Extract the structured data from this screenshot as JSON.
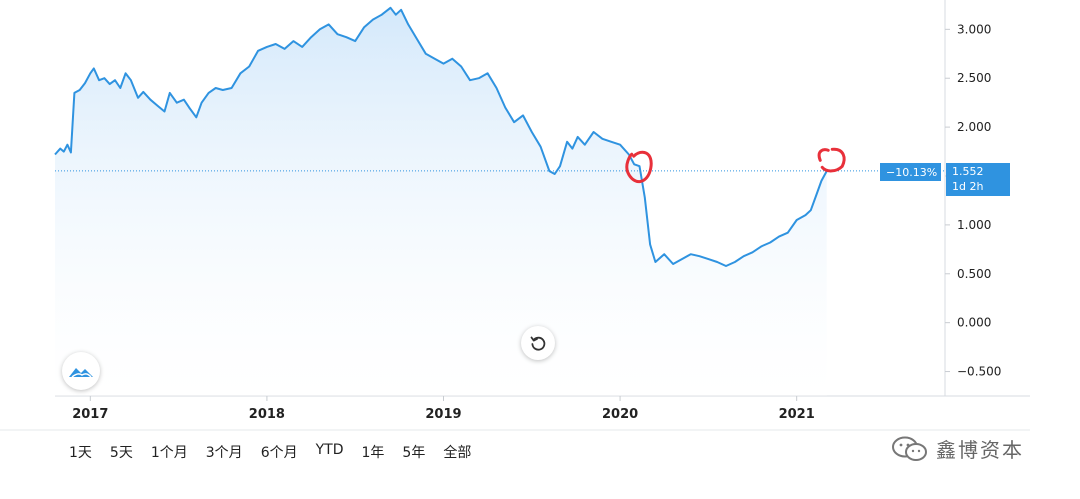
{
  "chart_data": {
    "type": "area",
    "x_years": [
      "2017",
      "2018",
      "2019",
      "2020",
      "2021"
    ],
    "y_ticks": [
      "3.000",
      "2.500",
      "2.000",
      "1.500",
      "1.000",
      "0.500",
      "0.000",
      "−0.500"
    ],
    "ylim": [
      -0.75,
      3.3
    ],
    "last_value": "1.552",
    "change_pct": "−10.13%",
    "interval_label": "1d 2h",
    "colors": {
      "line": "#2f93e0",
      "fill_top": "#cfe6fa",
      "fill_bottom": "#ffffff",
      "annotation": "#e8303a"
    },
    "series": [
      {
        "points": [
          [
            2016.8,
            1.72
          ],
          [
            2016.83,
            1.78
          ],
          [
            2016.85,
            1.75
          ],
          [
            2016.87,
            1.82
          ],
          [
            2016.89,
            1.74
          ],
          [
            2016.91,
            2.35
          ],
          [
            2016.94,
            2.38
          ],
          [
            2016.97,
            2.45
          ],
          [
            2017.0,
            2.55
          ],
          [
            2017.02,
            2.6
          ],
          [
            2017.05,
            2.48
          ],
          [
            2017.08,
            2.5
          ],
          [
            2017.11,
            2.44
          ],
          [
            2017.14,
            2.48
          ],
          [
            2017.17,
            2.4
          ],
          [
            2017.2,
            2.55
          ],
          [
            2017.23,
            2.48
          ],
          [
            2017.27,
            2.3
          ],
          [
            2017.3,
            2.36
          ],
          [
            2017.34,
            2.28
          ],
          [
            2017.38,
            2.22
          ],
          [
            2017.42,
            2.16
          ],
          [
            2017.45,
            2.35
          ],
          [
            2017.49,
            2.25
          ],
          [
            2017.53,
            2.28
          ],
          [
            2017.56,
            2.2
          ],
          [
            2017.6,
            2.1
          ],
          [
            2017.63,
            2.25
          ],
          [
            2017.67,
            2.35
          ],
          [
            2017.71,
            2.4
          ],
          [
            2017.75,
            2.38
          ],
          [
            2017.8,
            2.4
          ],
          [
            2017.85,
            2.55
          ],
          [
            2017.9,
            2.62
          ],
          [
            2017.95,
            2.78
          ],
          [
            2018.0,
            2.82
          ],
          [
            2018.05,
            2.85
          ],
          [
            2018.1,
            2.8
          ],
          [
            2018.15,
            2.88
          ],
          [
            2018.2,
            2.82
          ],
          [
            2018.25,
            2.92
          ],
          [
            2018.3,
            3.0
          ],
          [
            2018.35,
            3.05
          ],
          [
            2018.4,
            2.95
          ],
          [
            2018.45,
            2.92
          ],
          [
            2018.5,
            2.88
          ],
          [
            2018.55,
            3.02
          ],
          [
            2018.6,
            3.1
          ],
          [
            2018.65,
            3.15
          ],
          [
            2018.7,
            3.22
          ],
          [
            2018.73,
            3.15
          ],
          [
            2018.76,
            3.2
          ],
          [
            2018.8,
            3.05
          ],
          [
            2018.85,
            2.9
          ],
          [
            2018.9,
            2.75
          ],
          [
            2018.95,
            2.7
          ],
          [
            2019.0,
            2.65
          ],
          [
            2019.05,
            2.7
          ],
          [
            2019.1,
            2.62
          ],
          [
            2019.15,
            2.48
          ],
          [
            2019.2,
            2.5
          ],
          [
            2019.25,
            2.55
          ],
          [
            2019.3,
            2.4
          ],
          [
            2019.35,
            2.2
          ],
          [
            2019.4,
            2.05
          ],
          [
            2019.45,
            2.12
          ],
          [
            2019.5,
            1.95
          ],
          [
            2019.55,
            1.8
          ],
          [
            2019.6,
            1.55
          ],
          [
            2019.63,
            1.52
          ],
          [
            2019.66,
            1.6
          ],
          [
            2019.7,
            1.85
          ],
          [
            2019.73,
            1.78
          ],
          [
            2019.76,
            1.9
          ],
          [
            2019.8,
            1.82
          ],
          [
            2019.85,
            1.95
          ],
          [
            2019.9,
            1.88
          ],
          [
            2019.95,
            1.85
          ],
          [
            2020.0,
            1.82
          ],
          [
            2020.05,
            1.72
          ],
          [
            2020.08,
            1.62
          ],
          [
            2020.11,
            1.6
          ],
          [
            2020.14,
            1.28
          ],
          [
            2020.17,
            0.8
          ],
          [
            2020.2,
            0.62
          ],
          [
            2020.25,
            0.7
          ],
          [
            2020.3,
            0.6
          ],
          [
            2020.35,
            0.65
          ],
          [
            2020.4,
            0.7
          ],
          [
            2020.45,
            0.68
          ],
          [
            2020.5,
            0.65
          ],
          [
            2020.55,
            0.62
          ],
          [
            2020.6,
            0.58
          ],
          [
            2020.65,
            0.62
          ],
          [
            2020.7,
            0.68
          ],
          [
            2020.75,
            0.72
          ],
          [
            2020.8,
            0.78
          ],
          [
            2020.85,
            0.82
          ],
          [
            2020.9,
            0.88
          ],
          [
            2020.95,
            0.92
          ],
          [
            2021.0,
            1.05
          ],
          [
            2021.05,
            1.1
          ],
          [
            2021.08,
            1.15
          ],
          [
            2021.11,
            1.3
          ],
          [
            2021.14,
            1.45
          ],
          [
            2021.17,
            1.55
          ]
        ]
      }
    ]
  },
  "range_buttons": [
    "1天",
    "5天",
    "1个月",
    "3个月",
    "6个月",
    "YTD",
    "1年",
    "5年",
    "全部"
  ],
  "watermark": {
    "text": "鑫博资本"
  }
}
